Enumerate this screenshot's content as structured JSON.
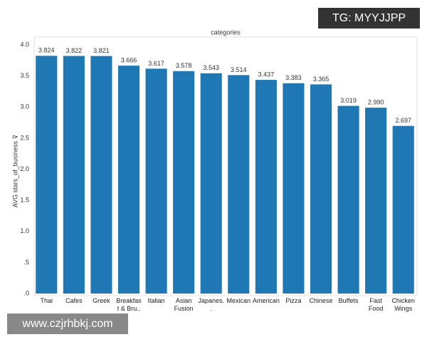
{
  "chart_data": {
    "type": "bar",
    "title": "categories",
    "y_label": "AVG stars_of_business ⊽",
    "categories": [
      "Thai",
      "Cafes",
      "Greek",
      "Breakfast & Bru..",
      "Italian",
      "Asian Fusion",
      "Japanes..",
      "Mexican",
      "American",
      "Pizza",
      "Chinese",
      "Buffets",
      "Fast Food",
      "Chicken Wings"
    ],
    "values": [
      3.824,
      3.822,
      3.821,
      3.666,
      3.617,
      3.578,
      3.543,
      3.514,
      3.437,
      3.383,
      3.365,
      3.019,
      2.99,
      2.697
    ],
    "value_labels": [
      "3.824",
      "3.822",
      "3.821",
      "3.666",
      "3.617",
      "3.578",
      "3.543",
      "3.514",
      "3.437",
      "3.383",
      "3.365",
      "3.019",
      "2.990",
      "2.697"
    ],
    "color": "#1f77b4",
    "ylim": [
      0,
      4
    ],
    "yticks": [
      {
        "value": 0,
        "label": ".0"
      },
      {
        "value": 0.5,
        "label": ".5"
      },
      {
        "value": 1,
        "label": "1.0"
      },
      {
        "value": 1.5,
        "label": "1.5"
      },
      {
        "value": 2,
        "label": "2.0"
      },
      {
        "value": 2.5,
        "label": "2.5"
      },
      {
        "value": 3,
        "label": "3.0"
      },
      {
        "value": 3.5,
        "label": "3.5"
      },
      {
        "value": 4,
        "label": "4.0"
      }
    ],
    "grid": false
  },
  "watermarks": [
    "TG: MYYJJPP",
    "www.czjrhbkj.com"
  ]
}
